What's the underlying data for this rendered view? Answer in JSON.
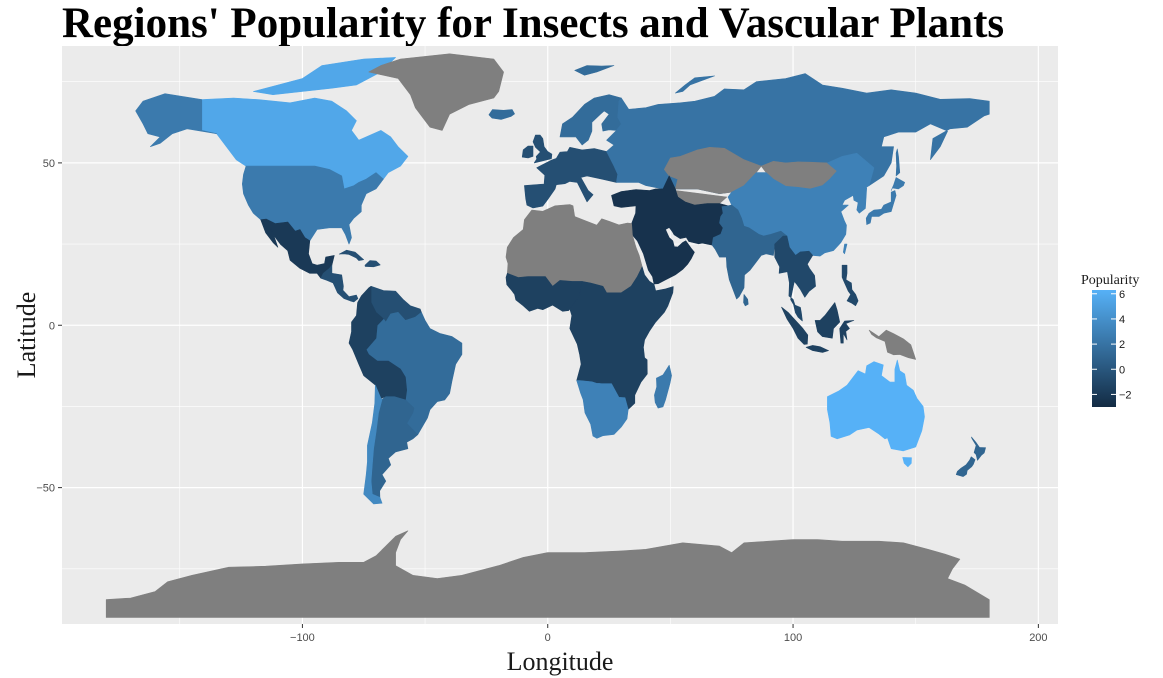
{
  "chart_data": {
    "type": "choropleth",
    "title": "Regions' Popularity for Insects and Vascular Plants",
    "xlabel": "Longitude",
    "ylabel": "Latitude",
    "xlim": [
      -198,
      208
    ],
    "ylim": [
      -92,
      86
    ],
    "x_ticks": [
      -100,
      0,
      100,
      200
    ],
    "y_ticks": [
      -50,
      0,
      50
    ],
    "x_tick_labels": [
      "−100",
      "0",
      "100",
      "200"
    ],
    "y_tick_labels": [
      "−50",
      "0",
      "50"
    ],
    "grid": true,
    "panel_background": "#ebebeb",
    "missing_color": "#7f7f7f",
    "legend": {
      "title": "Popularity",
      "placement": "right",
      "range": [
        -3,
        6.3
      ],
      "low_color": "#132b43",
      "high_color": "#56b1f7",
      "ticks": [
        6,
        4,
        2,
        0,
        -2
      ],
      "tick_labels": [
        "6",
        "4",
        "2",
        "0",
        "−2"
      ]
    },
    "regions": [
      {
        "name": "Canada",
        "value": 5.6
      },
      {
        "name": "Alaska",
        "value": 2.5
      },
      {
        "name": "United States",
        "value": 2.5
      },
      {
        "name": "Greenland",
        "value": null
      },
      {
        "name": "Mexico",
        "value": -2.0
      },
      {
        "name": "Central America",
        "value": -0.5
      },
      {
        "name": "Venezuela-Guianas",
        "value": -0.5
      },
      {
        "name": "Brazil",
        "value": 1.5
      },
      {
        "name": "Andes",
        "value": -1.5
      },
      {
        "name": "Argentina",
        "value": 1.0
      },
      {
        "name": "Chile",
        "value": 3.5
      },
      {
        "name": "Western Europe",
        "value": -0.5
      },
      {
        "name": "Northern Europe",
        "value": 1.5
      },
      {
        "name": "Russia",
        "value": 2.0
      },
      {
        "name": "Central Asia",
        "value": null
      },
      {
        "name": "Mongolia",
        "value": null
      },
      {
        "name": "China",
        "value": 3.0
      },
      {
        "name": "Japan",
        "value": 2.5
      },
      {
        "name": "Middle East",
        "value": -2.5
      },
      {
        "name": "India",
        "value": 1.0
      },
      {
        "name": "North Africa",
        "value": null
      },
      {
        "name": "West Africa",
        "value": -1.5
      },
      {
        "name": "East Africa",
        "value": -1.5
      },
      {
        "name": "Southern Africa",
        "value": 3.0
      },
      {
        "name": "Madagascar",
        "value": 2.5
      },
      {
        "name": "Southeast Asia",
        "value": -1.0
      },
      {
        "name": "Indonesia",
        "value": -1.5
      },
      {
        "name": "Papua New Guinea",
        "value": null
      },
      {
        "name": "Australia",
        "value": 6.3
      },
      {
        "name": "New Zealand",
        "value": 1.0
      },
      {
        "name": "Antarctica",
        "value": null
      }
    ]
  }
}
